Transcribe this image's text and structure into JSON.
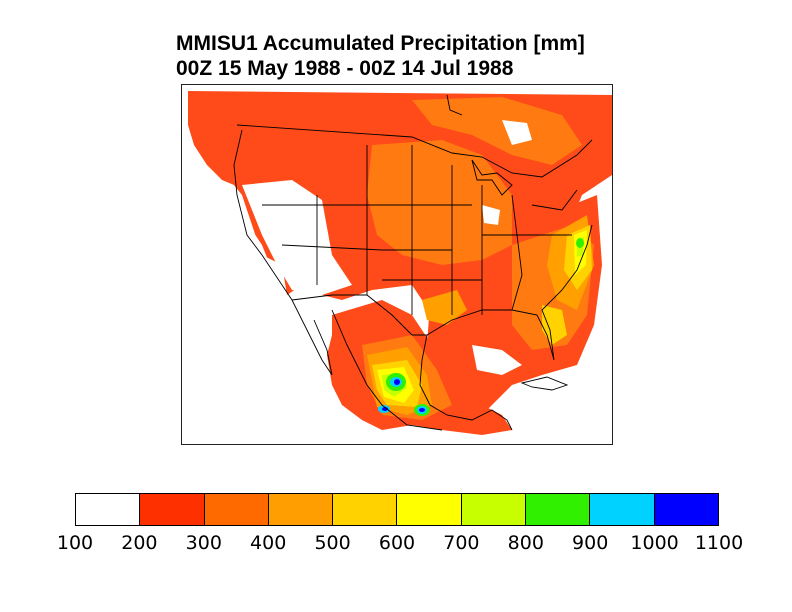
{
  "title": {
    "line1": "MMISU1 Accumulated Precipitation [mm]",
    "line2": "00Z 15 May 1988 - 00Z 14 Jul 1988"
  },
  "colorbar": {
    "segment_colors": [
      "#ffffff",
      "#ff3000",
      "#ff6a00",
      "#ff9e00",
      "#ffd200",
      "#ffff00",
      "#c8ff00",
      "#30f000",
      "#00d2ff",
      "#0000ff"
    ],
    "tick_labels": [
      "100",
      "200",
      "300",
      "400",
      "500",
      "600",
      "700",
      "800",
      "900",
      "1000",
      "1100"
    ]
  },
  "map": {
    "fill_colors": {
      "red": "#ff4a1a",
      "orange": "#ff7a10",
      "amber": "#ffa000",
      "gold": "#ffd200",
      "yellow": "#ffff00",
      "lime": "#c8ff00",
      "green": "#30f000",
      "cyan": "#00d2ff",
      "blue": "#0000ff"
    }
  }
}
